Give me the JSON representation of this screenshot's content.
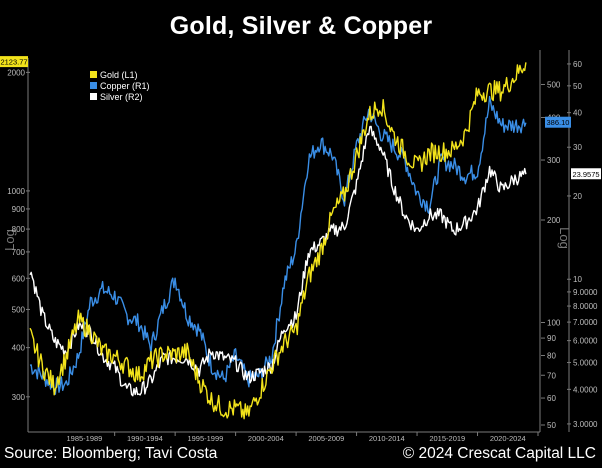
{
  "header": {
    "title": "Gold, Silver & Copper"
  },
  "footer": {
    "source": "Source: Bloomberg; Tavi Costa",
    "copyright": "© 2024 Crescat Capital LLC"
  },
  "colors": {
    "gold": "#f2e31b",
    "copper": "#3a8ee6",
    "silver": "#ffffff",
    "axis": "#7a7a7a",
    "background": "#000000"
  },
  "chart_data": {
    "type": "line",
    "scale": "log",
    "legend_position": "top-left",
    "grid": false,
    "x_tick_labels": [
      "1985-1989",
      "1990-1994",
      "1995-1999",
      "2000-2004",
      "2005-2009",
      "2010-2014",
      "2015-2019",
      "2020-2024"
    ],
    "left_axis": {
      "label": "Log",
      "ticks": [
        "2000",
        "1000",
        "900",
        "800",
        "700",
        "600",
        "500",
        "400",
        "300"
      ],
      "ylim": [
        250,
        2150
      ]
    },
    "right1_axis": {
      "label": "Log",
      "ticks": [
        "500",
        "400",
        "300",
        "200",
        "100",
        "90",
        "80",
        "70",
        "60",
        "50"
      ],
      "ylim": [
        49,
        590
      ]
    },
    "right2_axis": {
      "ticks": [
        "60",
        "50",
        "40",
        "30",
        "20",
        "10",
        "9.0000",
        "8.0000",
        "7.0000",
        "6.0000",
        "5.0000",
        "4.0000",
        "3.0000"
      ],
      "ylim": [
        2.9,
        62
      ]
    },
    "last_values": {
      "gold": "2123.77",
      "copper": "386.10",
      "silver": "23.9575"
    },
    "series": [
      {
        "name": "Gold (L1)",
        "axis": "left",
        "color": "#f2e31b",
        "x": [
          1983,
          1984,
          1985,
          1986,
          1987,
          1988,
          1989,
          1990,
          1991,
          1992,
          1993,
          1994,
          1995,
          1996,
          1997,
          1998,
          1999,
          2000,
          2001,
          2002,
          2003,
          2004,
          2005,
          2006,
          2007,
          2008,
          2009,
          2010,
          2011,
          2012,
          2013,
          2014,
          2015,
          2016,
          2017,
          2018,
          2019,
          2020,
          2021,
          2022,
          2023,
          2024
        ],
        "values": [
          430,
          360,
          320,
          380,
          470,
          440,
          390,
          380,
          360,
          340,
          370,
          385,
          385,
          390,
          330,
          295,
          280,
          280,
          270,
          310,
          360,
          410,
          445,
          600,
          700,
          870,
          980,
          1230,
          1550,
          1670,
          1400,
          1250,
          1150,
          1250,
          1260,
          1270,
          1400,
          1770,
          1800,
          1800,
          1940,
          2120
        ]
      },
      {
        "name": "Copper (R1)",
        "axis": "right1",
        "color": "#3a8ee6",
        "x": [
          1983,
          1984,
          1985,
          1986,
          1987,
          1988,
          1989,
          1990,
          1991,
          1992,
          1993,
          1994,
          1995,
          1996,
          1997,
          1998,
          1999,
          2000,
          2001,
          2002,
          2003,
          2004,
          2005,
          2006,
          2007,
          2008,
          2009,
          2010,
          2011,
          2012,
          2013,
          2014,
          2015,
          2016,
          2017,
          2018,
          2019,
          2020,
          2021,
          2022,
          2023,
          2024
        ],
        "values": [
          75,
          70,
          65,
          66,
          80,
          115,
          125,
          120,
          105,
          100,
          85,
          110,
          135,
          105,
          95,
          75,
          68,
          80,
          68,
          70,
          80,
          130,
          165,
          300,
          340,
          310,
          230,
          330,
          420,
          360,
          330,
          300,
          240,
          220,
          300,
          290,
          270,
          280,
          440,
          380,
          380,
          386
        ]
      },
      {
        "name": "Silver (R2)",
        "axis": "right2",
        "color": "#ffffff",
        "x": [
          1983,
          1984,
          1985,
          1986,
          1987,
          1988,
          1989,
          1990,
          1991,
          1992,
          1993,
          1994,
          1995,
          1996,
          1997,
          1998,
          1999,
          2000,
          2001,
          2002,
          2003,
          2004,
          2005,
          2006,
          2007,
          2008,
          2009,
          2010,
          2011,
          2012,
          2013,
          2014,
          2015,
          2016,
          2017,
          2018,
          2019,
          2020,
          2021,
          2022,
          2023,
          2024
        ],
        "values": [
          11,
          7.5,
          6.0,
          5.5,
          6.8,
          6.5,
          5.3,
          4.8,
          4.0,
          3.9,
          4.3,
          5.2,
          5.2,
          5.2,
          4.7,
          5.5,
          5.2,
          5.0,
          4.4,
          4.6,
          4.9,
          6.7,
          7.3,
          12.5,
          13.5,
          15,
          15.5,
          22,
          35,
          30,
          22,
          17,
          15,
          17,
          17,
          15,
          16,
          18,
          25,
          21,
          23,
          23.96
        ]
      }
    ]
  }
}
